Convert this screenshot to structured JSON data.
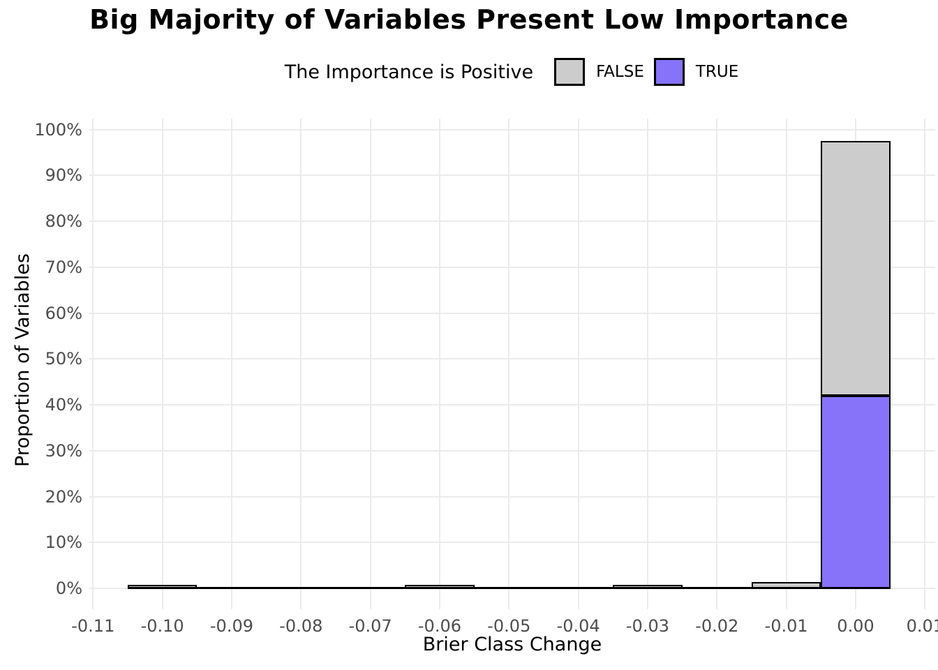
{
  "header": {
    "title": "Big Majority of Variables Present Low Importance"
  },
  "legend": {
    "title": "The Importance is Positive",
    "items": [
      {
        "label": "FALSE",
        "color": "#cccccc"
      },
      {
        "label": "TRUE",
        "color": "#8673fa"
      }
    ]
  },
  "axes": {
    "x_title": "Brier Class Change",
    "y_title": "Proportion of Variables"
  },
  "chart_data": {
    "type": "bar",
    "subtype": "stacked_histogram",
    "title": "Big Majority of Variables Present Low Importance",
    "xlabel": "Brier Class Change",
    "ylabel": "Proportion of Variables",
    "legend_title": "The Importance is Positive",
    "legend_position": "top",
    "legend_entries": [
      "FALSE",
      "TRUE"
    ],
    "grid": "major_only",
    "panel_background": "#ffffff",
    "gridline_color": "#ebebeb",
    "bar_outline_color": "#000000",
    "tick_label_color": "#4d4d4d",
    "x_tick_values": [
      -0.11,
      -0.1,
      -0.09,
      -0.08,
      -0.07,
      -0.06,
      -0.05,
      -0.04,
      -0.03,
      -0.02,
      -0.01,
      0.0,
      0.01
    ],
    "x_tick_labels": [
      "-0.11",
      "-0.10",
      "-0.09",
      "-0.08",
      "-0.07",
      "-0.06",
      "-0.05",
      "-0.04",
      "-0.03",
      "-0.02",
      "-0.01",
      "0.00",
      "0.01"
    ],
    "y_tick_values": [
      0,
      10,
      20,
      30,
      40,
      50,
      60,
      70,
      80,
      90,
      100
    ],
    "y_tick_labels": [
      "0%",
      "10%",
      "20%",
      "30%",
      "40%",
      "50%",
      "60%",
      "70%",
      "80%",
      "90%",
      "100%"
    ],
    "xlim": [
      -0.1105,
      0.0105
    ],
    "ylim": [
      0,
      100
    ],
    "bin_width": 0.01,
    "zero_outline_span": [
      -0.105,
      0.005
    ],
    "categories": [
      -0.1,
      -0.06,
      -0.03,
      -0.01,
      0.0
    ],
    "series": [
      {
        "name": "FALSE",
        "color": "#cccccc",
        "values": [
          0.5,
          0.5,
          0.5,
          1.4,
          55.5
        ]
      },
      {
        "name": "TRUE",
        "color": "#8673fa",
        "values": [
          0,
          0,
          0,
          0,
          42.0
        ]
      }
    ],
    "stack_order_bottom_to_top": [
      "TRUE",
      "FALSE"
    ]
  }
}
